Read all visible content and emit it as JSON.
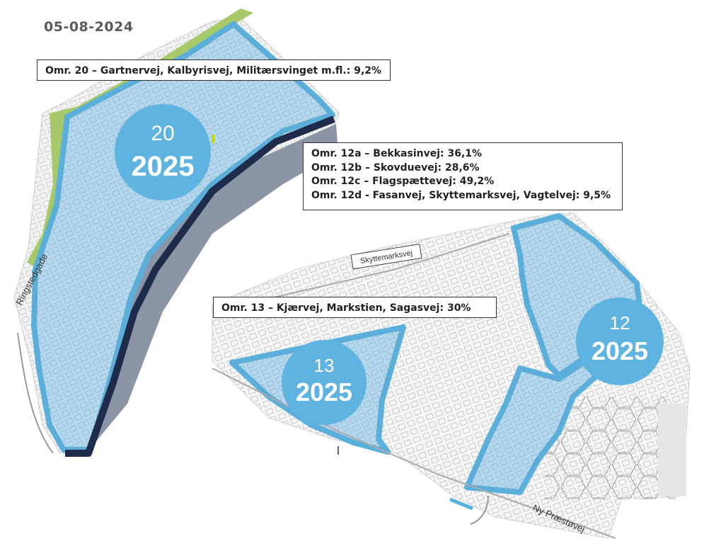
{
  "date": "05-08-2024",
  "areas": {
    "omr20": {
      "number": "20",
      "year": "2025",
      "description": "Omr. 20 – Gartnervej, Kalbyrisvej, Militærsvinget m.fl.: 9,2%"
    },
    "omr12": {
      "number": "12",
      "year": "2025",
      "descriptions": [
        "Omr. 12a – Bekkasinvej: 36,1%",
        "Omr. 12b – Skovduevej: 28,6%",
        "Omr. 12c – Flagspættevej: 49,2%",
        "Omr. 12d - Fasanvej, Skyttemarksvej, Vagtelvej: 9,5%"
      ]
    },
    "omr13": {
      "number": "13",
      "year": "2025",
      "description": "Omr. 13 – Kjærvej, Markstien, Sagasvej: 30%"
    }
  },
  "streets": {
    "ringstedgade": "Ringstedgade",
    "skyttemarksvej": "Skyttemarksvej",
    "ny_praestoevej": "Ny Præstøvej"
  },
  "colors": {
    "area_fill": "#b3d8f0",
    "area_border": "#5ab0dc",
    "badge": "#5fb3e0",
    "green_strip": "#a8c96a",
    "rail_dark": "#1f2b4a",
    "rail_shadow": "#8c95a6"
  }
}
